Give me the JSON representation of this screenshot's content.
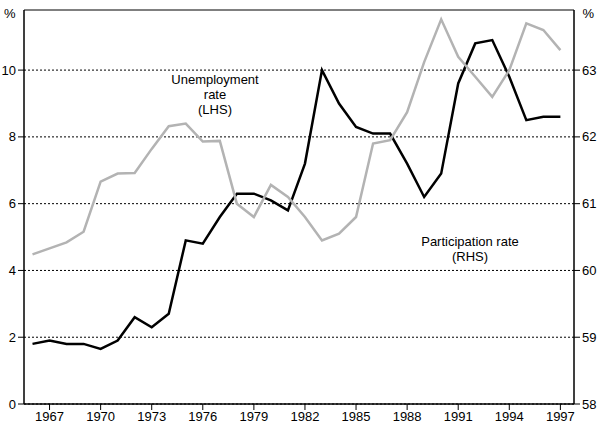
{
  "chart_data": {
    "type": "line",
    "x": [
      1966,
      1967,
      1968,
      1969,
      1970,
      1971,
      1972,
      1973,
      1974,
      1975,
      1976,
      1977,
      1978,
      1979,
      1980,
      1981,
      1982,
      1983,
      1984,
      1985,
      1986,
      1987,
      1988,
      1989,
      1990,
      1991,
      1992,
      1993,
      1994,
      1995,
      1996,
      1997
    ],
    "series": [
      {
        "name": "Unemployment rate (LHS)",
        "color": "#000000",
        "values": [
          1.8,
          1.9,
          1.8,
          1.8,
          1.65,
          1.9,
          2.6,
          2.3,
          2.7,
          4.9,
          4.8,
          5.6,
          6.3,
          6.3,
          6.1,
          5.8,
          7.2,
          10.0,
          9.0,
          8.3,
          8.1,
          8.1,
          7.2,
          6.2,
          6.9,
          9.6,
          10.8,
          10.9,
          9.8,
          8.5,
          8.6,
          8.6
        ]
      },
      {
        "name": "Participation rate (RHS)",
        "color": "#b3b3b3",
        "axis": "y2",
        "values": [
          60.24,
          60.33,
          60.42,
          60.58,
          61.33,
          61.45,
          61.46,
          61.82,
          62.16,
          62.2,
          61.93,
          61.94,
          61.0,
          60.8,
          61.28,
          61.1,
          60.8,
          60.45,
          60.55,
          60.8,
          61.9,
          61.95,
          62.37,
          63.12,
          63.76,
          63.2,
          62.9,
          62.6,
          63.0,
          63.7,
          63.6,
          63.3
        ]
      }
    ],
    "ylabel": "%",
    "y2label": "%",
    "xlim": [
      1965.5,
      1997.8
    ],
    "xticks": [
      1967,
      1970,
      1973,
      1976,
      1979,
      1982,
      1985,
      1988,
      1991,
      1994,
      1997
    ],
    "ylim": [
      0,
      11.8
    ],
    "yticks": [
      0,
      2,
      4,
      6,
      8,
      10
    ],
    "y2lim": [
      58,
      63.9
    ],
    "y2ticks": [
      58,
      59,
      60,
      61,
      62,
      63
    ],
    "grid": true
  }
}
